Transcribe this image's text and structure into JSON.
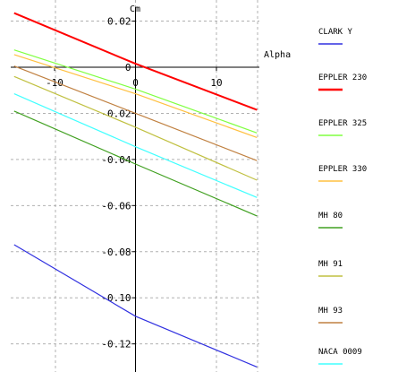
{
  "chart_data": {
    "type": "line",
    "title": "",
    "xlabel": "Alpha",
    "ylabel": "Cm",
    "xlim": [
      -15,
      15
    ],
    "ylim": [
      -0.13,
      0.02
    ],
    "grid": true,
    "legend_position": "right",
    "x_ticks": [
      {
        "value": -10,
        "label": "-10"
      },
      {
        "value": 0,
        "label": "0"
      },
      {
        "value": 10,
        "label": "10"
      }
    ],
    "y_ticks": [
      {
        "value": 0.02,
        "label": "0.02"
      },
      {
        "value": 0,
        "label": "0"
      },
      {
        "value": -0.02,
        "label": "-0.02"
      },
      {
        "value": -0.04,
        "label": "-0.04"
      },
      {
        "value": -0.06,
        "label": "-0.06"
      },
      {
        "value": -0.08,
        "label": "-0.08"
      },
      {
        "value": -0.1,
        "label": "-0.10"
      },
      {
        "value": -0.12,
        "label": "-0.12"
      }
    ],
    "x": [
      -15,
      0,
      15
    ],
    "series": [
      {
        "name": "CLARK Y",
        "color": "#3030e0",
        "values": [
          -0.077,
          -0.108,
          -0.13
        ]
      },
      {
        "name": "EPPLER 230",
        "color": "#ff0000",
        "values": [
          0.0235,
          0.0015,
          -0.0185
        ]
      },
      {
        "name": "EPPLER 325",
        "color": "#80ff40",
        "values": [
          0.0075,
          -0.0095,
          -0.0285
        ]
      },
      {
        "name": "EPPLER 330",
        "color": "#ffc040",
        "values": [
          0.0055,
          -0.0115,
          -0.0305
        ]
      },
      {
        "name": "MH 80",
        "color": "#40a020",
        "values": [
          -0.019,
          -0.042,
          -0.0645
        ]
      },
      {
        "name": "MH 91",
        "color": "#c0c040",
        "values": [
          -0.004,
          -0.026,
          -0.049
        ]
      },
      {
        "name": "MH 93",
        "color": "#c08040",
        "values": [
          0.0005,
          -0.02,
          -0.0405
        ]
      },
      {
        "name": "NACA 0009",
        "color": "#40ffff",
        "values": [
          -0.0115,
          -0.0345,
          -0.0565
        ]
      }
    ]
  }
}
